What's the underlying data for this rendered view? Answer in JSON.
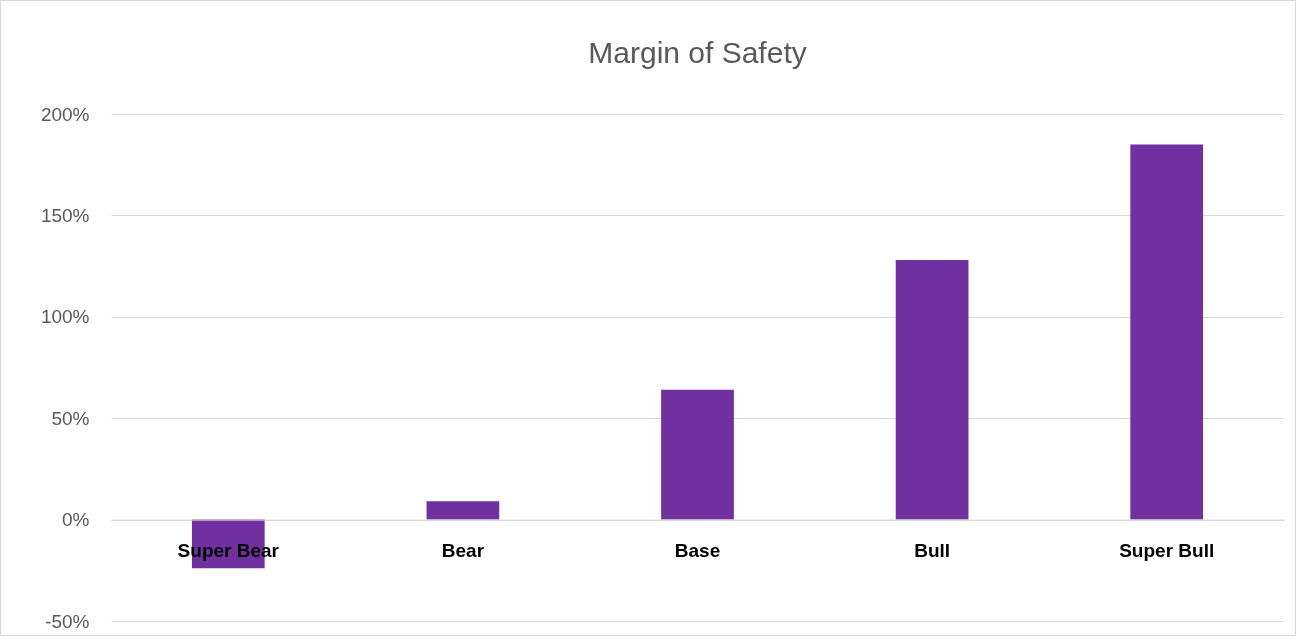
{
  "chart_data": {
    "type": "bar",
    "title": "Margin of Safety",
    "categories": [
      "Super Bear",
      "Bear",
      "Base",
      "Bull",
      "Super Bull"
    ],
    "values": [
      -24,
      9,
      64,
      128,
      185
    ],
    "color": "#7030a0",
    "ylim": [
      -50,
      200
    ],
    "yticks": [
      {
        "value": -50,
        "label": "-50%"
      },
      {
        "value": 0,
        "label": "0%"
      },
      {
        "value": 50,
        "label": "50%"
      },
      {
        "value": 100,
        "label": "100%"
      },
      {
        "value": 150,
        "label": "150%"
      },
      {
        "value": 200,
        "label": "200%"
      }
    ],
    "grid": "y"
  }
}
